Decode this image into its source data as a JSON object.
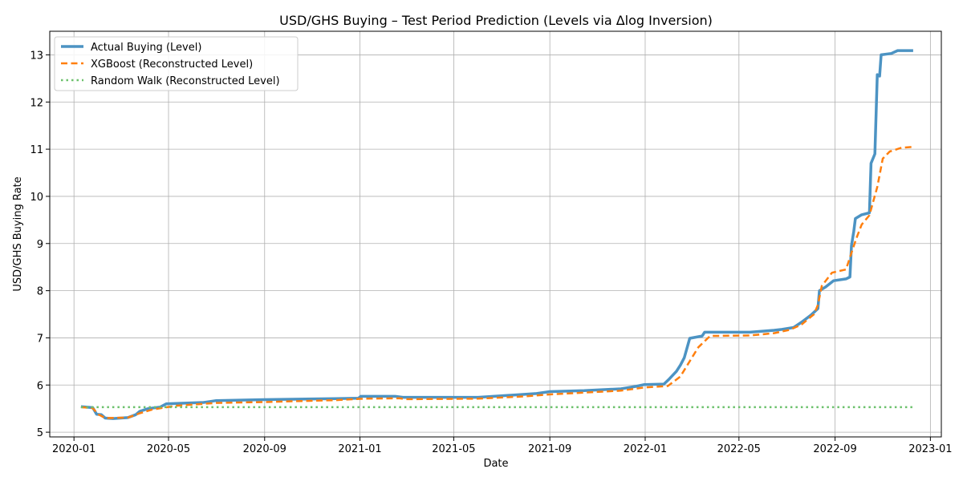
{
  "chart_data": {
    "type": "line",
    "title": "USD/GHS Buying – Test Period Prediction (Levels via Δlog  Inversion)",
    "xlabel": "Date",
    "ylabel": "USD/GHS Buying Rate",
    "xlim": [
      "2019-12-01",
      "2023-01-15"
    ],
    "ylim": [
      4.9,
      13.5
    ],
    "grid": true,
    "legend_position": "top-left",
    "x_ticks": [
      "2020-01",
      "2020-05",
      "2020-09",
      "2021-01",
      "2021-05",
      "2021-09",
      "2022-01",
      "2022-05",
      "2022-09",
      "2023-01"
    ],
    "y_ticks": [
      5,
      6,
      7,
      8,
      9,
      10,
      11,
      12,
      13
    ],
    "series": [
      {
        "name": "Actual Buying (Level)",
        "color": "#4c93c3",
        "style": "solid",
        "points": [
          [
            "2020-01-10",
            5.54
          ],
          [
            "2020-01-25",
            5.52
          ],
          [
            "2020-01-30",
            5.38
          ],
          [
            "2020-02-05",
            5.37
          ],
          [
            "2020-02-10",
            5.3
          ],
          [
            "2020-02-20",
            5.29
          ],
          [
            "2020-03-10",
            5.31
          ],
          [
            "2020-03-20",
            5.37
          ],
          [
            "2020-03-25",
            5.44
          ],
          [
            "2020-04-05",
            5.5
          ],
          [
            "2020-04-20",
            5.53
          ],
          [
            "2020-04-28",
            5.6
          ],
          [
            "2020-06-15",
            5.63
          ],
          [
            "2020-07-01",
            5.67
          ],
          [
            "2020-09-01",
            5.69
          ],
          [
            "2020-12-01",
            5.71
          ],
          [
            "2020-12-30",
            5.72
          ],
          [
            "2021-01-02",
            5.76
          ],
          [
            "2021-02-15",
            5.76
          ],
          [
            "2021-02-25",
            5.74
          ],
          [
            "2021-06-01",
            5.74
          ],
          [
            "2021-07-01",
            5.77
          ],
          [
            "2021-08-15",
            5.82
          ],
          [
            "2021-09-01",
            5.86
          ],
          [
            "2021-10-15",
            5.88
          ],
          [
            "2021-12-01",
            5.92
          ],
          [
            "2021-12-20",
            5.97
          ],
          [
            "2021-12-31",
            6.01
          ],
          [
            "2022-01-25",
            6.02
          ],
          [
            "2022-02-01",
            6.13
          ],
          [
            "2022-02-10",
            6.29
          ],
          [
            "2022-02-15",
            6.42
          ],
          [
            "2022-02-20",
            6.58
          ],
          [
            "2022-02-27",
            6.99
          ],
          [
            "2022-03-15",
            7.04
          ],
          [
            "2022-03-18",
            7.12
          ],
          [
            "2022-05-15",
            7.12
          ],
          [
            "2022-06-15",
            7.16
          ],
          [
            "2022-06-25",
            7.18
          ],
          [
            "2022-07-10",
            7.22
          ],
          [
            "2022-07-20",
            7.33
          ],
          [
            "2022-08-01",
            7.48
          ],
          [
            "2022-08-10",
            7.62
          ],
          [
            "2022-08-12",
            8.0
          ],
          [
            "2022-08-20",
            8.08
          ],
          [
            "2022-08-30",
            8.21
          ],
          [
            "2022-09-15",
            8.25
          ],
          [
            "2022-09-20",
            8.29
          ],
          [
            "2022-09-22",
            8.95
          ],
          [
            "2022-09-25",
            9.26
          ],
          [
            "2022-09-27",
            9.53
          ],
          [
            "2022-10-05",
            9.61
          ],
          [
            "2022-10-15",
            9.65
          ],
          [
            "2022-10-17",
            10.7
          ],
          [
            "2022-10-22",
            10.9
          ],
          [
            "2022-10-25",
            12.58
          ],
          [
            "2022-10-28",
            12.55
          ],
          [
            "2022-10-30",
            13.0
          ],
          [
            "2022-11-12",
            13.03
          ],
          [
            "2022-11-20",
            13.09
          ],
          [
            "2022-12-10",
            13.09
          ]
        ]
      },
      {
        "name": "XGBoost (Reconstructed Level)",
        "color": "#ff7f0e",
        "style": "dashed",
        "points": [
          [
            "2020-01-10",
            5.53
          ],
          [
            "2020-01-25",
            5.51
          ],
          [
            "2020-02-01",
            5.38
          ],
          [
            "2020-02-10",
            5.3
          ],
          [
            "2020-03-10",
            5.31
          ],
          [
            "2020-03-25",
            5.4
          ],
          [
            "2020-04-10",
            5.48
          ],
          [
            "2020-04-25",
            5.52
          ],
          [
            "2020-05-10",
            5.56
          ],
          [
            "2020-07-01",
            5.62
          ],
          [
            "2020-09-01",
            5.64
          ],
          [
            "2020-12-01",
            5.68
          ],
          [
            "2021-01-05",
            5.71
          ],
          [
            "2021-02-20",
            5.72
          ],
          [
            "2021-03-01",
            5.7
          ],
          [
            "2021-06-01",
            5.71
          ],
          [
            "2021-08-01",
            5.76
          ],
          [
            "2021-09-01",
            5.8
          ],
          [
            "2021-12-01",
            5.88
          ],
          [
            "2022-01-01",
            5.95
          ],
          [
            "2022-01-30",
            5.98
          ],
          [
            "2022-02-15",
            6.18
          ],
          [
            "2022-02-25",
            6.45
          ],
          [
            "2022-03-10",
            6.8
          ],
          [
            "2022-03-25",
            7.04
          ],
          [
            "2022-05-15",
            7.05
          ],
          [
            "2022-06-15",
            7.1
          ],
          [
            "2022-07-05",
            7.17
          ],
          [
            "2022-07-20",
            7.28
          ],
          [
            "2022-08-05",
            7.5
          ],
          [
            "2022-08-10",
            7.7
          ],
          [
            "2022-08-15",
            8.1
          ],
          [
            "2022-08-28",
            8.38
          ],
          [
            "2022-09-15",
            8.45
          ],
          [
            "2022-09-22",
            8.8
          ],
          [
            "2022-09-28",
            9.1
          ],
          [
            "2022-10-05",
            9.4
          ],
          [
            "2022-10-15",
            9.6
          ],
          [
            "2022-10-20",
            9.9
          ],
          [
            "2022-10-25",
            10.2
          ],
          [
            "2022-11-01",
            10.8
          ],
          [
            "2022-11-10",
            10.95
          ],
          [
            "2022-11-25",
            11.03
          ],
          [
            "2022-12-10",
            11.05
          ]
        ]
      },
      {
        "name": "Random Walk (Reconstructed Level)",
        "color": "#6cc16c",
        "style": "dotted",
        "points": [
          [
            "2020-01-10",
            5.53
          ],
          [
            "2022-12-10",
            5.53
          ]
        ]
      }
    ]
  }
}
